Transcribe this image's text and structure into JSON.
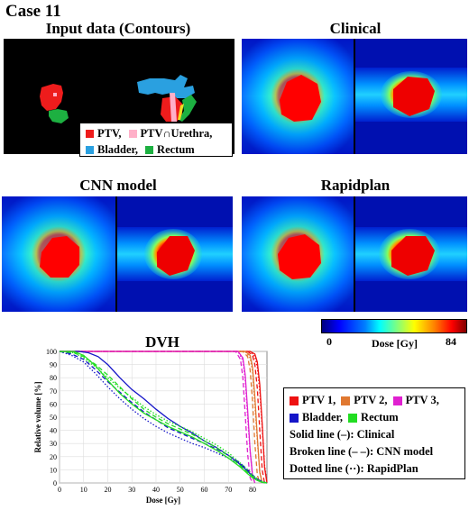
{
  "case_title": "Case 11",
  "panels": {
    "input": "Input data (Contours)",
    "clinical": "Clinical",
    "cnn": "CNN model",
    "rapidplan": "Rapidplan",
    "dvh": "DVH"
  },
  "contour_legend": [
    {
      "label": "PTV,",
      "color": "#ee1c1c"
    },
    {
      "label": "PTV∩Urethra,",
      "color": "#ffb0c8"
    },
    {
      "label": "Bladder,",
      "color": "#2aa0e0"
    },
    {
      "label": "Rectum",
      "color": "#1db041"
    }
  ],
  "colorbar": {
    "min_label": "0",
    "max_label": "84",
    "label": "Dose [Gy]"
  },
  "dvh_legend": {
    "structures": [
      {
        "label": "PTV 1,",
        "color": "#ee1111"
      },
      {
        "label": "PTV 2,",
        "color": "#e07830"
      },
      {
        "label": "PTV 3,",
        "color": "#e020d0"
      },
      {
        "label": "Bladder,",
        "color": "#1515c8"
      },
      {
        "label": "Rectum",
        "color": "#22dd22"
      }
    ],
    "lines": [
      "Solid line (–): Clinical",
      "Broken line (– –): CNN model",
      "Dotted line (··): RapidPlan"
    ]
  },
  "chart_data": {
    "type": "line",
    "title": "DVH",
    "xlabel": "Dose [Gy]",
    "ylabel": "Relative volume [%]",
    "xlim": [
      0,
      86
    ],
    "ylim": [
      0,
      100
    ],
    "xticks": [
      0,
      10,
      20,
      30,
      40,
      50,
      60,
      70,
      80
    ],
    "yticks": [
      0,
      10,
      20,
      30,
      40,
      50,
      60,
      70,
      80,
      90,
      100
    ],
    "series": [
      {
        "name": "PTV 1",
        "plan": "Clinical",
        "color": "#ee1111",
        "dash": "solid",
        "x": [
          0,
          79,
          81,
          82,
          83,
          84,
          85,
          86
        ],
        "y": [
          100,
          100,
          98,
          92,
          75,
          45,
          12,
          0
        ]
      },
      {
        "name": "PTV 1",
        "plan": "CNN model",
        "color": "#ee1111",
        "dash": "dashed",
        "x": [
          0,
          78,
          80,
          81,
          82,
          83,
          84,
          85
        ],
        "y": [
          100,
          100,
          97,
          90,
          72,
          40,
          10,
          0
        ]
      },
      {
        "name": "PTV 1",
        "plan": "RapidPlan",
        "color": "#ee1111",
        "dash": "dotted",
        "x": [
          0,
          79,
          81,
          82,
          83,
          84,
          85,
          86
        ],
        "y": [
          100,
          100,
          96,
          88,
          70,
          42,
          14,
          0
        ]
      },
      {
        "name": "PTV 2",
        "plan": "Clinical",
        "color": "#e07830",
        "dash": "solid",
        "x": [
          0,
          77,
          79,
          80,
          81,
          82,
          83,
          84
        ],
        "y": [
          100,
          100,
          97,
          88,
          65,
          35,
          8,
          0
        ]
      },
      {
        "name": "PTV 2",
        "plan": "CNN model",
        "color": "#e07830",
        "dash": "dashed",
        "x": [
          0,
          76,
          78,
          79,
          80,
          81,
          82,
          83
        ],
        "y": [
          100,
          100,
          96,
          86,
          62,
          30,
          6,
          0
        ]
      },
      {
        "name": "PTV 2",
        "plan": "RapidPlan",
        "color": "#e07830",
        "dash": "dotted",
        "x": [
          0,
          77,
          79,
          80,
          81,
          82,
          83,
          84
        ],
        "y": [
          100,
          100,
          95,
          85,
          60,
          32,
          9,
          0
        ]
      },
      {
        "name": "PTV 3",
        "plan": "Clinical",
        "color": "#e020d0",
        "dash": "solid",
        "x": [
          0,
          74,
          76,
          77,
          78,
          79,
          80,
          81
        ],
        "y": [
          100,
          100,
          95,
          82,
          55,
          25,
          5,
          0
        ]
      },
      {
        "name": "PTV 3",
        "plan": "CNN model",
        "color": "#e020d0",
        "dash": "dashed",
        "x": [
          0,
          73,
          75,
          76,
          77,
          78,
          79,
          80
        ],
        "y": [
          100,
          100,
          94,
          80,
          52,
          22,
          4,
          0
        ]
      },
      {
        "name": "PTV 3",
        "plan": "RapidPlan",
        "color": "#e020d0",
        "dash": "dotted",
        "x": [
          0,
          74,
          76,
          77,
          78,
          79,
          80,
          81
        ],
        "y": [
          100,
          100,
          93,
          78,
          50,
          24,
          6,
          0
        ]
      },
      {
        "name": "Bladder",
        "plan": "Clinical",
        "color": "#1515c8",
        "dash": "solid",
        "x": [
          0,
          8,
          12,
          16,
          20,
          25,
          30,
          35,
          40,
          45,
          50,
          55,
          60,
          65,
          70,
          75,
          78,
          80,
          82,
          84,
          86
        ],
        "y": [
          100,
          100,
          99,
          96,
          90,
          80,
          71,
          64,
          56,
          49,
          43,
          38,
          32,
          27,
          21,
          14,
          9,
          5,
          2,
          0.5,
          0
        ]
      },
      {
        "name": "Bladder",
        "plan": "CNN model",
        "color": "#1515c8",
        "dash": "dashed",
        "x": [
          0,
          5,
          10,
          15,
          20,
          25,
          30,
          35,
          40,
          45,
          50,
          55,
          60,
          65,
          70,
          75,
          78,
          80,
          82,
          84,
          86
        ],
        "y": [
          100,
          98,
          94,
          86,
          77,
          69,
          61,
          54,
          48,
          42,
          38,
          34,
          30,
          26,
          21,
          15,
          10,
          6,
          3,
          1,
          0
        ]
      },
      {
        "name": "Bladder",
        "plan": "RapidPlan",
        "color": "#1515c8",
        "dash": "dotted",
        "x": [
          0,
          5,
          10,
          15,
          20,
          25,
          30,
          35,
          40,
          45,
          50,
          55,
          60,
          65,
          70,
          75,
          78,
          80,
          82,
          84,
          86
        ],
        "y": [
          100,
          97,
          92,
          83,
          73,
          64,
          56,
          49,
          43,
          38,
          34,
          30,
          27,
          23,
          19,
          14,
          10,
          6,
          3,
          1,
          0
        ]
      },
      {
        "name": "Rectum",
        "plan": "Clinical",
        "color": "#22dd22",
        "dash": "solid",
        "x": [
          0,
          6,
          10,
          15,
          20,
          25,
          30,
          35,
          40,
          45,
          50,
          55,
          60,
          65,
          70,
          75,
          78,
          80,
          82,
          84,
          86
        ],
        "y": [
          100,
          100,
          97,
          89,
          78,
          68,
          60,
          53,
          48,
          43,
          39,
          35,
          30,
          25,
          19,
          12,
          7,
          4,
          2,
          0.5,
          0
        ]
      },
      {
        "name": "Rectum",
        "plan": "CNN model",
        "color": "#22dd22",
        "dash": "dashed",
        "x": [
          0,
          6,
          10,
          15,
          20,
          25,
          30,
          35,
          40,
          45,
          50,
          55,
          60,
          65,
          70,
          75,
          78,
          80,
          82,
          84,
          86
        ],
        "y": [
          100,
          99,
          96,
          90,
          82,
          73,
          64,
          56,
          50,
          45,
          41,
          37,
          32,
          27,
          21,
          13,
          8,
          5,
          2,
          0.5,
          0
        ]
      },
      {
        "name": "Rectum",
        "plan": "RapidPlan",
        "color": "#22dd22",
        "dash": "dotted",
        "x": [
          0,
          6,
          10,
          15,
          20,
          25,
          30,
          35,
          40,
          45,
          50,
          55,
          60,
          65,
          70,
          75,
          78,
          80,
          82,
          84,
          86
        ],
        "y": [
          100,
          99,
          95,
          88,
          80,
          72,
          65,
          58,
          52,
          47,
          43,
          39,
          34,
          29,
          23,
          15,
          10,
          6,
          3,
          1,
          0
        ]
      }
    ]
  }
}
